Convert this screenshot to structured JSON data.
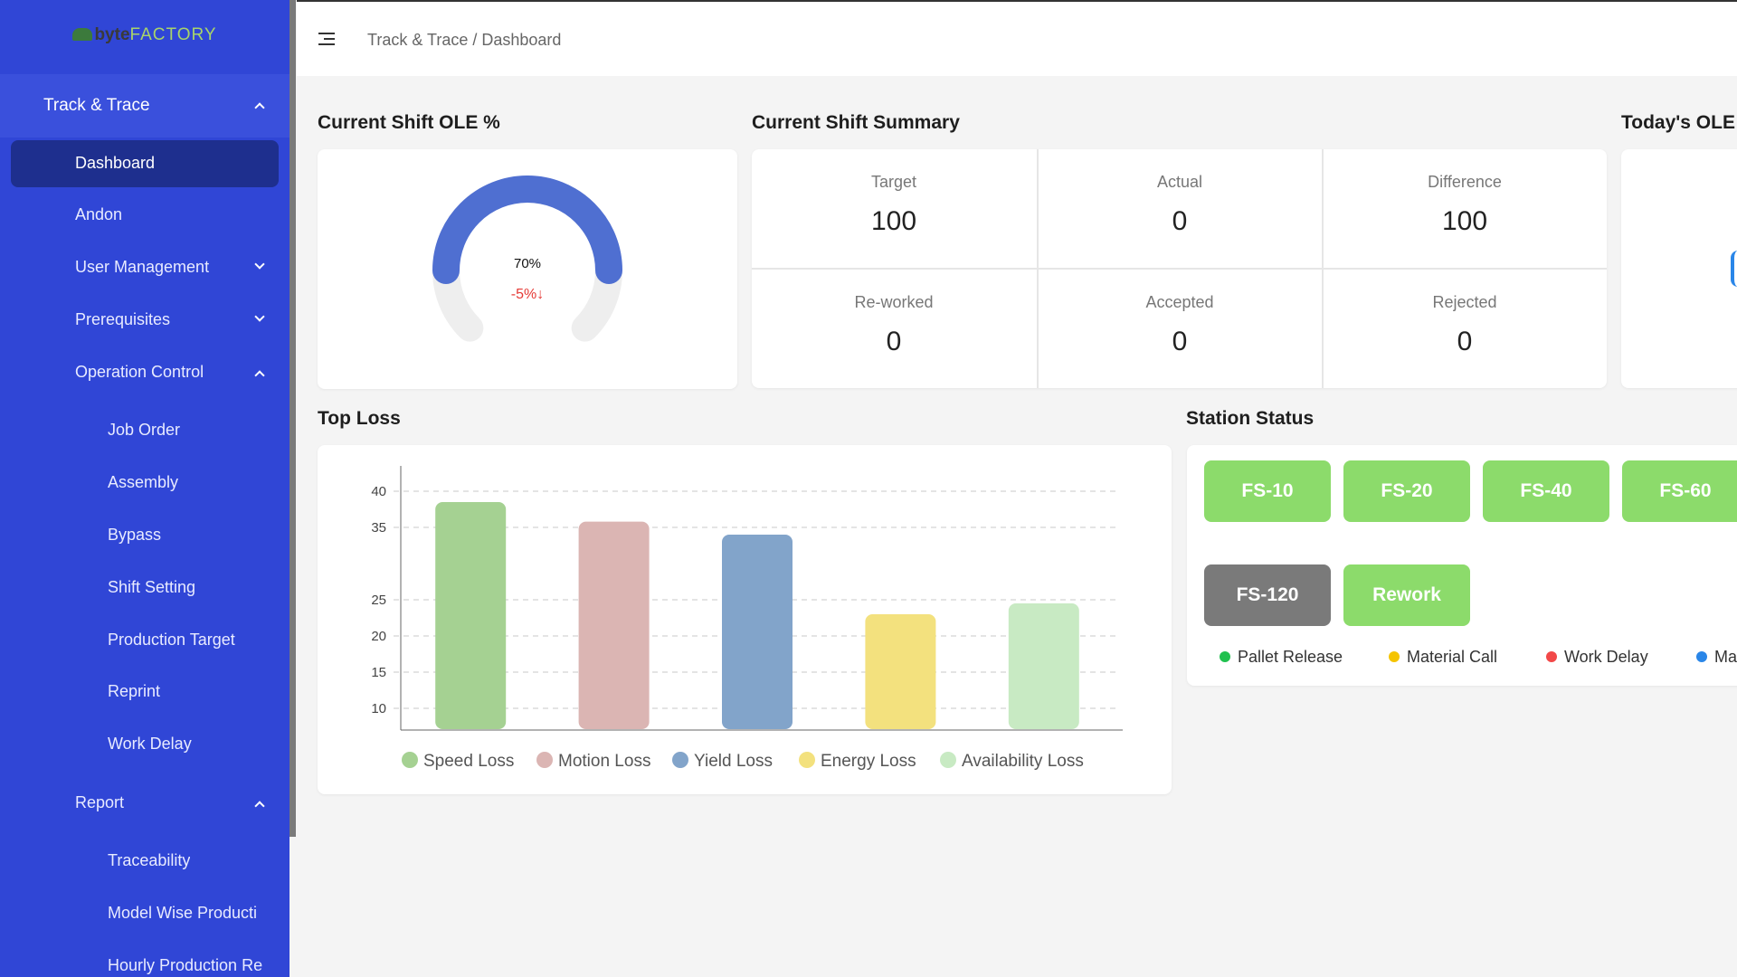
{
  "sidebar": {
    "logo": {
      "byte": "byte",
      "factory": "FACTORY"
    },
    "group": {
      "label": "Track & Trace"
    },
    "items": [
      {
        "label": "Dashboard"
      },
      {
        "label": "Andon"
      },
      {
        "label": "User Management"
      },
      {
        "label": "Prerequisites"
      },
      {
        "label": "Operation Control"
      },
      {
        "label": "Job Order"
      },
      {
        "label": "Assembly"
      },
      {
        "label": "Bypass"
      },
      {
        "label": "Shift Setting"
      },
      {
        "label": "Production Target"
      },
      {
        "label": "Reprint"
      },
      {
        "label": "Work Delay"
      },
      {
        "label": "Report"
      },
      {
        "label": "Traceability"
      },
      {
        "label": "Model Wise Producti"
      },
      {
        "label": "Hourly Production Re"
      }
    ]
  },
  "header": {
    "breadcrumb": "Track & Trace / Dashboard"
  },
  "ole": {
    "title": "Current Shift OLE %",
    "value_label": "70%",
    "value": 0.7,
    "change": "-5%",
    "change_arrow": "↓",
    "gauge_color": "#4f6fd1",
    "track_color": "#eeeeee",
    "change_color": "#e53935"
  },
  "summary": {
    "title": "Current Shift Summary",
    "cells": [
      {
        "label": "Target",
        "value": "100"
      },
      {
        "label": "Actual",
        "value": "0"
      },
      {
        "label": "Difference",
        "value": "100"
      },
      {
        "label": "Re-worked",
        "value": "0"
      },
      {
        "label": "Accepted",
        "value": "0"
      },
      {
        "label": "Rejected",
        "value": "0"
      }
    ]
  },
  "todays_ole": {
    "title": "Today's OLE"
  },
  "top_loss": {
    "title": "Top Loss"
  },
  "chart_data": {
    "type": "bar",
    "categories": [
      "Speed Loss",
      "Motion Loss",
      "Yield Loss",
      "Energy Loss",
      "Availability Loss"
    ],
    "values": [
      38.5,
      35.8,
      34,
      23,
      24.5
    ],
    "colors": [
      "#a5d192",
      "#dbb5b3",
      "#82a4ca",
      "#f3e17e",
      "#c8eac3"
    ],
    "y_ticks": [
      "10",
      "15",
      "20",
      "25",
      "35",
      "40"
    ],
    "ylim": [
      7,
      42
    ],
    "grid": true,
    "legend": "bottom",
    "series": [
      {
        "name": "Speed Loss"
      },
      {
        "name": "Motion Loss"
      },
      {
        "name": "Yield Loss"
      },
      {
        "name": "Energy Loss"
      },
      {
        "name": "Availability Loss"
      }
    ]
  },
  "station_status": {
    "title": "Station Status",
    "stations": [
      {
        "label": "FS-10",
        "color": "#8cdb6b"
      },
      {
        "label": "FS-20",
        "color": "#8cdb6b"
      },
      {
        "label": "FS-40",
        "color": "#8cdb6b"
      },
      {
        "label": "FS-60",
        "color": "#8cdb6b"
      },
      {
        "label": "FS-120",
        "color": "#7a7a7a"
      },
      {
        "label": "Rework",
        "color": "#8cdb6b"
      }
    ],
    "legend": [
      {
        "label": "Pallet Release",
        "color": "#21c14f"
      },
      {
        "label": "Material Call",
        "color": "#f5c400"
      },
      {
        "label": "Work Delay",
        "color": "#f24848"
      },
      {
        "label": "Ma",
        "color": "#2a86e8"
      }
    ]
  }
}
